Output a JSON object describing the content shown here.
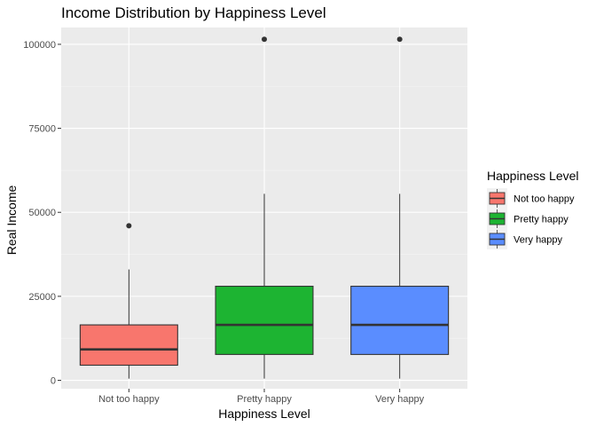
{
  "chart_data": {
    "type": "box",
    "title": "Income Distribution by Happiness Level",
    "xlabel": "Happiness Level",
    "ylabel": "Real Income",
    "categories": [
      "Not too happy",
      "Pretty happy",
      "Very happy"
    ],
    "ylim": [
      -2500,
      105000
    ],
    "yticks": [
      0,
      25000,
      50000,
      75000,
      100000
    ],
    "ytick_labels": [
      "0",
      "25000",
      "50000",
      "75000",
      "100000"
    ],
    "grid": true,
    "legend": {
      "title": "Happiness Level",
      "position": "right",
      "entries": [
        "Not too happy",
        "Pretty happy",
        "Very happy"
      ]
    },
    "colors": [
      "#F8766D",
      "#00BA38",
      "#619CFF"
    ],
    "box_fill": [
      "#F8766D",
      "#1DB432",
      "#5A8DFF"
    ],
    "boxes": [
      {
        "category": "Not too happy",
        "min": 500,
        "q1": 4500,
        "median": 9200,
        "q3": 16500,
        "max": 33000,
        "outliers": [
          46000
        ]
      },
      {
        "category": "Pretty happy",
        "min": 500,
        "q1": 7700,
        "median": 16500,
        "q3": 28000,
        "max": 55500,
        "outliers": [
          101500
        ]
      },
      {
        "category": "Very happy",
        "min": 500,
        "q1": 7700,
        "median": 16500,
        "q3": 28000,
        "max": 55500,
        "outliers": [
          101500
        ]
      }
    ]
  }
}
